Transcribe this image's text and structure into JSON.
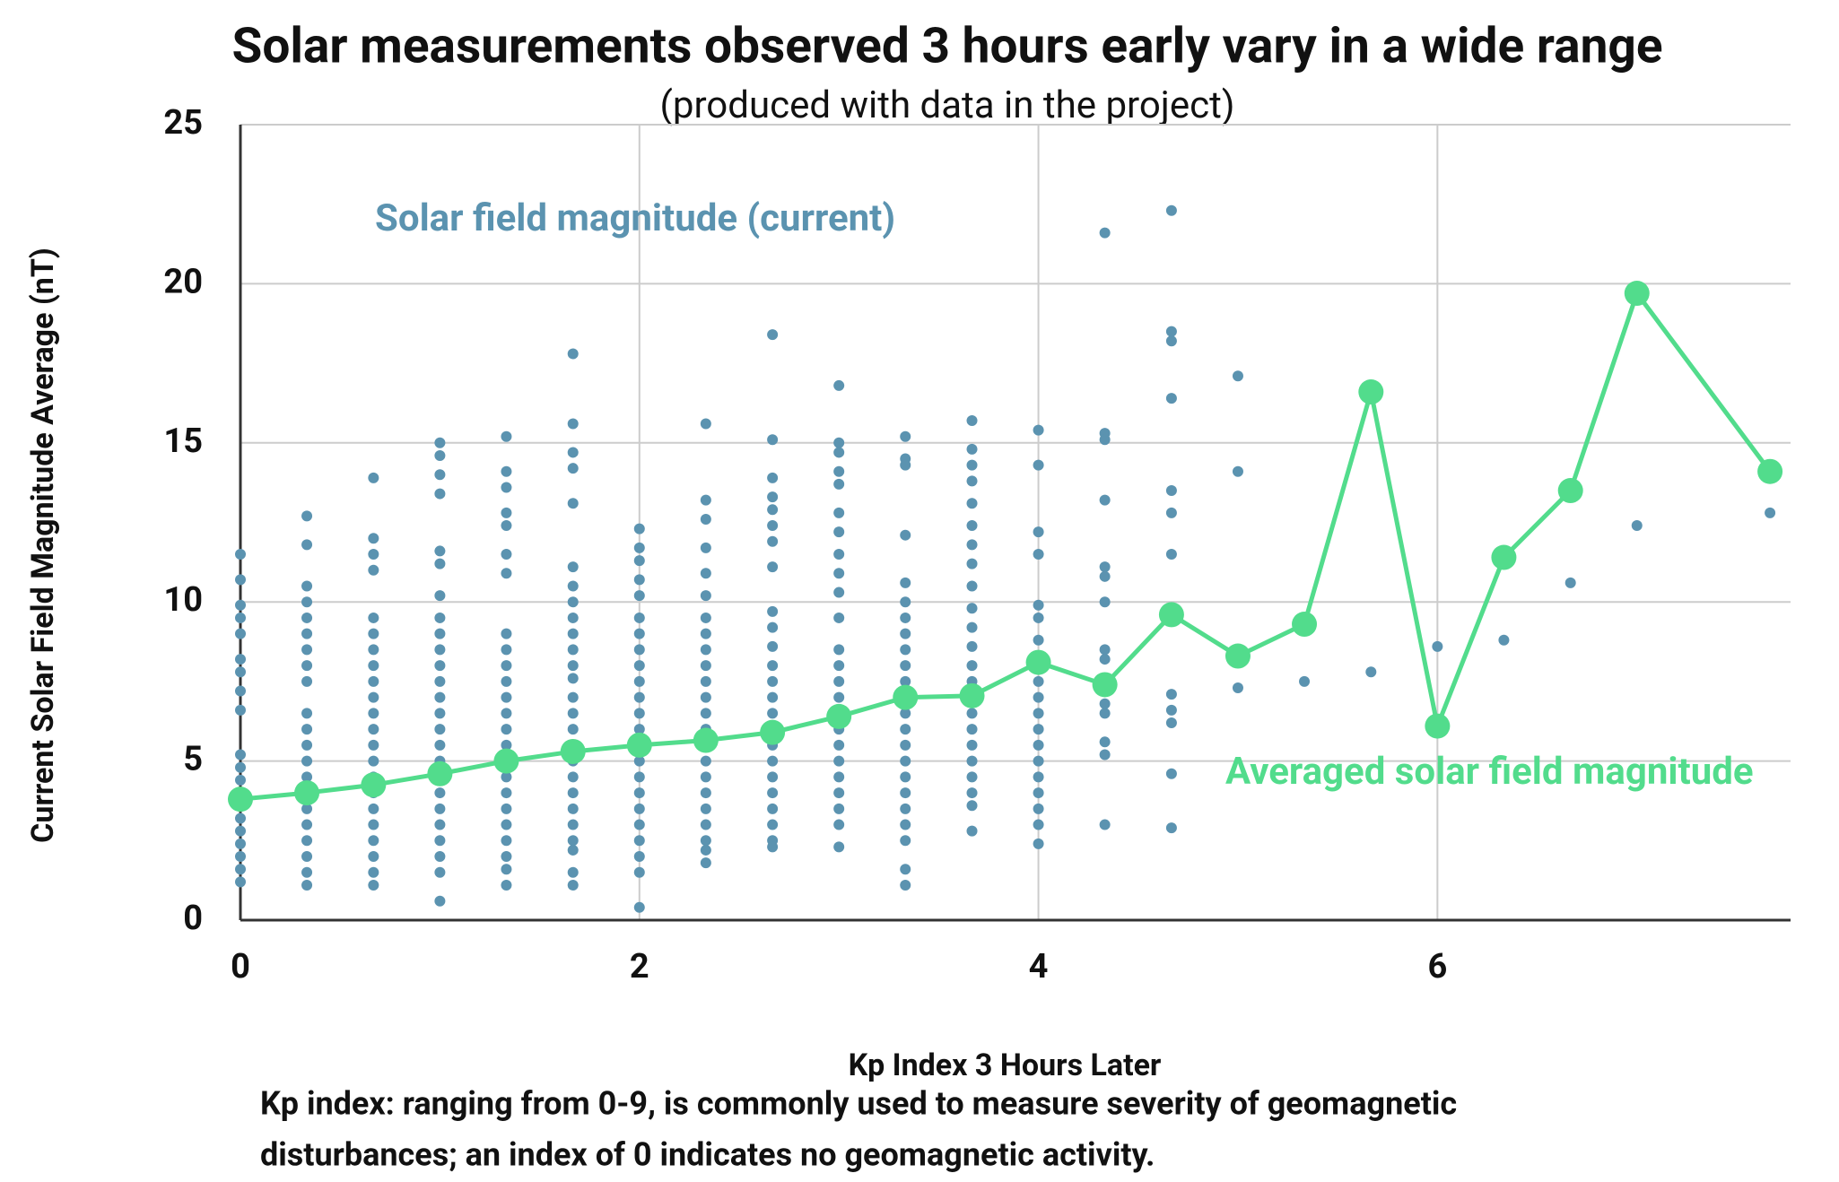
{
  "chart_data": {
    "type": "scatter",
    "title": "Solar measurements observed 3 hours early vary in a wide range",
    "subtitle": "(produced with data in the project)",
    "x_label": "Kp Index 3 Hours Later",
    "y_label": "Current Solar Field Magnitude Average (nT)",
    "note": [
      "Kp index: ranging from 0-9, is commonly used to measure severity of geomagnetic",
      "disturbances; an index of 0 indicates no geomagnetic activity."
    ],
    "xlim": [
      0,
      7.77
    ],
    "ylim": [
      0,
      25
    ],
    "xticks": [
      0,
      2,
      4,
      6
    ],
    "yticks": [
      0,
      5,
      10,
      15,
      20,
      25
    ],
    "grid": true,
    "series": [
      {
        "name": "Solar field magnitude (current)",
        "color": "#5b93b0",
        "type": "scatter",
        "groups": [
          {
            "x": 0,
            "values": [
              11.5,
              10.7,
              9.9,
              9.5,
              9,
              8.2,
              7.8,
              7.2,
              6.6,
              5.2,
              4.8,
              4.4,
              4,
              3.6,
              3.2,
              2.8,
              2.4,
              2,
              1.6,
              1.2
            ]
          },
          {
            "x": 0.333,
            "values": [
              12.7,
              11.8,
              10.5,
              10,
              9.5,
              9,
              8.5,
              8,
              7.5,
              6.5,
              6,
              5.5,
              5,
              4.5,
              4,
              3.5,
              3,
              2.5,
              2,
              1.5,
              1.1
            ]
          },
          {
            "x": 0.667,
            "values": [
              13.9,
              12,
              11.5,
              11,
              9.5,
              9,
              8.5,
              8,
              7.5,
              7,
              6.5,
              6,
              5.5,
              5,
              4.5,
              4,
              3.5,
              3,
              2.5,
              2,
              1.5,
              1.1
            ]
          },
          {
            "x": 1,
            "values": [
              15,
              14.6,
              14,
              13.4,
              11.6,
              11.2,
              10.2,
              9.5,
              9,
              8.5,
              8,
              7.5,
              7,
              6.5,
              6,
              5.5,
              5,
              4.5,
              4,
              3.5,
              3,
              2.5,
              2,
              1.5,
              0.6
            ]
          },
          {
            "x": 1.333,
            "values": [
              15.2,
              14.1,
              13.6,
              12.8,
              12.4,
              11.5,
              10.9,
              9,
              8.5,
              8,
              7.5,
              7,
              6.5,
              6,
              5.5,
              5,
              4.5,
              4,
              3.5,
              3,
              2.5,
              2,
              1.6,
              1.1
            ]
          },
          {
            "x": 1.667,
            "values": [
              17.8,
              15.6,
              14.7,
              14.2,
              13.1,
              11.1,
              10.5,
              10,
              9.5,
              9,
              8.5,
              8,
              7.6,
              7,
              6.5,
              6,
              5.5,
              5,
              4.5,
              4,
              3.5,
              3,
              2.5,
              2.2,
              1.5,
              1.1
            ]
          },
          {
            "x": 2,
            "values": [
              12.3,
              11.7,
              11.3,
              10.7,
              10.2,
              9.5,
              9,
              8.5,
              8,
              7.5,
              7,
              6.5,
              6,
              5.5,
              5,
              4.5,
              4,
              3.5,
              3,
              2.5,
              2,
              1.5,
              0.4
            ]
          },
          {
            "x": 2.333,
            "values": [
              15.6,
              13.2,
              12.6,
              11.7,
              10.9,
              10.2,
              9.5,
              9,
              8.5,
              8,
              7.5,
              7,
              6.5,
              6,
              5.5,
              5,
              4.5,
              4,
              3.5,
              3,
              2.5,
              2.2,
              1.8
            ]
          },
          {
            "x": 2.667,
            "values": [
              18.4,
              15.1,
              13.9,
              13.3,
              12.9,
              12.4,
              11.9,
              11.1,
              9.7,
              9.2,
              8.6,
              8,
              7.5,
              7,
              6.5,
              6,
              5.5,
              5,
              4.5,
              4,
              3.5,
              3,
              2.5,
              2.3
            ]
          },
          {
            "x": 3,
            "values": [
              16.8,
              15,
              14.7,
              14.1,
              13.7,
              12.8,
              12.2,
              11.5,
              10.9,
              10.3,
              9.5,
              8.5,
              8,
              7.5,
              7,
              6.5,
              6,
              5.5,
              5,
              4.5,
              4,
              3.5,
              3,
              2.3
            ]
          },
          {
            "x": 3.333,
            "values": [
              15.2,
              14.5,
              14.3,
              12.1,
              10.6,
              10,
              9.5,
              9,
              8.5,
              8,
              7.5,
              7,
              6.5,
              6,
              5.5,
              5,
              4.5,
              4,
              3.5,
              3,
              2.5,
              1.6,
              1.1
            ]
          },
          {
            "x": 3.667,
            "values": [
              15.7,
              14.8,
              14.3,
              13.8,
              13.1,
              12.4,
              11.8,
              11.2,
              10.5,
              9.8,
              9.2,
              8.6,
              8,
              7.5,
              7,
              6.5,
              6,
              5.5,
              5,
              4.5,
              4,
              3.6,
              2.8
            ]
          },
          {
            "x": 4,
            "values": [
              15.4,
              14.3,
              12.2,
              11.5,
              9.9,
              9.5,
              8.8,
              8,
              7.5,
              7,
              6.5,
              6,
              5.5,
              5,
              4.5,
              4,
              3.5,
              3,
              2.4
            ]
          },
          {
            "x": 4.333,
            "values": [
              21.6,
              15.3,
              15.1,
              13.2,
              11.1,
              10.8,
              10,
              8.5,
              8.2,
              7.5,
              6.8,
              6.5,
              5.6,
              5.2,
              3
            ]
          },
          {
            "x": 4.667,
            "values": [
              22.3,
              18.5,
              18.2,
              16.4,
              13.5,
              12.8,
              11.5,
              7.1,
              6.6,
              6.2,
              4.6,
              2.9
            ]
          },
          {
            "x": 5,
            "values": [
              17.1,
              14.1,
              7.3
            ]
          },
          {
            "x": 5.333,
            "values": [
              7.5
            ]
          },
          {
            "x": 5.667,
            "values": [
              7.8
            ]
          },
          {
            "x": 6,
            "values": [
              8.6
            ]
          },
          {
            "x": 6.333,
            "values": [
              8.8
            ]
          },
          {
            "x": 6.667,
            "values": [
              10.6
            ]
          },
          {
            "x": 7,
            "values": [
              12.4
            ]
          },
          {
            "x": 7.667,
            "values": [
              12.8
            ]
          }
        ]
      },
      {
        "name": "Averaged solar field magnitude",
        "color": "#52dc8c",
        "type": "line",
        "x": [
          0,
          0.333,
          0.667,
          1,
          1.333,
          1.667,
          2,
          2.333,
          2.667,
          3,
          3.333,
          3.667,
          4,
          4.333,
          4.667,
          5,
          5.333,
          5.667,
          6,
          6.333,
          6.667,
          7,
          7.667
        ],
        "values": [
          3.8,
          4.0,
          4.25,
          4.6,
          5.0,
          5.3,
          5.5,
          5.65,
          5.9,
          6.4,
          7.0,
          7.05,
          8.1,
          7.4,
          9.6,
          8.3,
          9.3,
          16.6,
          6.1,
          11.4,
          13.5,
          19.7,
          14.1
        ]
      }
    ]
  }
}
